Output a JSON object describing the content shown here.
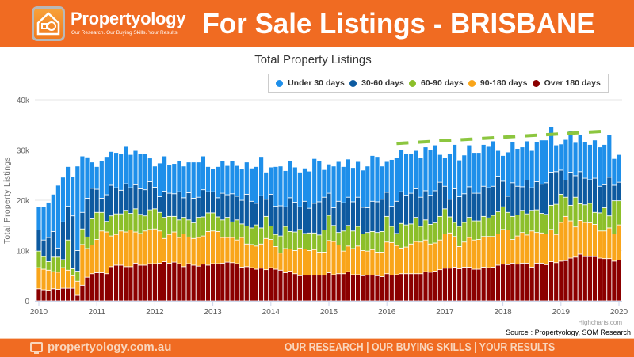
{
  "header": {
    "brand": "Propertyology",
    "tagline": "Our Research. Our Buying Skills. Your Results",
    "title": "For Sale Listings - BRISBANE"
  },
  "footer": {
    "site": "propertyology.com.au",
    "slogan": "OUR RESEARCH | OUR BUYING SKILLS | YOUR RESULTS",
    "brand_color": "#f06b22"
  },
  "source": {
    "label": "Source",
    "text": ": Propertyology, SQM Research"
  },
  "credit": "Highcharts.com",
  "chart_data": {
    "type": "bar",
    "stacked": true,
    "title": "Total Property Listings",
    "ylabel": "Total Property Listings",
    "xlabel": "",
    "ylim": [
      0,
      40000
    ],
    "yticks": [
      "0",
      "10k",
      "20k",
      "30k",
      "40k"
    ],
    "ytick_values": [
      0,
      10000,
      20000,
      30000,
      40000
    ],
    "xticks": [
      "2010",
      "2011",
      "2012",
      "2013",
      "2014",
      "2015",
      "2016",
      "2017",
      "2018",
      "2019",
      "2020"
    ],
    "grid": true,
    "legend_position": "top-right",
    "units": "thousands of listings",
    "categories": [
      "2010-01",
      "2010-02",
      "2010-03",
      "2010-04",
      "2010-05",
      "2010-06",
      "2010-07",
      "2010-08",
      "2010-09",
      "2010-10",
      "2010-11",
      "2010-12",
      "2011-01",
      "2011-02",
      "2011-03",
      "2011-04",
      "2011-05",
      "2011-06",
      "2011-07",
      "2011-08",
      "2011-09",
      "2011-10",
      "2011-11",
      "2011-12",
      "2012-01",
      "2012-02",
      "2012-03",
      "2012-04",
      "2012-05",
      "2012-06",
      "2012-07",
      "2012-08",
      "2012-09",
      "2012-10",
      "2012-11",
      "2012-12",
      "2013-01",
      "2013-02",
      "2013-03",
      "2013-04",
      "2013-05",
      "2013-06",
      "2013-07",
      "2013-08",
      "2013-09",
      "2013-10",
      "2013-11",
      "2013-12",
      "2014-01",
      "2014-02",
      "2014-03",
      "2014-04",
      "2014-05",
      "2014-06",
      "2014-07",
      "2014-08",
      "2014-09",
      "2014-10",
      "2014-11",
      "2014-12",
      "2015-01",
      "2015-02",
      "2015-03",
      "2015-04",
      "2015-05",
      "2015-06",
      "2015-07",
      "2015-08",
      "2015-09",
      "2015-10",
      "2015-11",
      "2015-12",
      "2016-01",
      "2016-02",
      "2016-03",
      "2016-04",
      "2016-05",
      "2016-06",
      "2016-07",
      "2016-08",
      "2016-09",
      "2016-10",
      "2016-11",
      "2016-12",
      "2017-01",
      "2017-02",
      "2017-03",
      "2017-04",
      "2017-05",
      "2017-06",
      "2017-07",
      "2017-08",
      "2017-09",
      "2017-10",
      "2017-11",
      "2017-12",
      "2018-01",
      "2018-02",
      "2018-03",
      "2018-04",
      "2018-05",
      "2018-06",
      "2018-07",
      "2018-08",
      "2018-09",
      "2018-10",
      "2018-11",
      "2018-12",
      "2019-01",
      "2019-02",
      "2019-03",
      "2019-04",
      "2019-05",
      "2019-06",
      "2019-07",
      "2019-08",
      "2019-09",
      "2019-10",
      "2019-11",
      "2019-12",
      "2020-01"
    ],
    "series": [
      {
        "name": "Over 180 days",
        "color": "#8b0000",
        "values": [
          2.4,
          2.2,
          2.1,
          2.4,
          2.3,
          2.5,
          2.5,
          2.5,
          1.1,
          3.1,
          4.7,
          5.4,
          5.6,
          5.6,
          5.4,
          6.8,
          7.1,
          7.1,
          6.8,
          6.8,
          7.5,
          7.1,
          7.1,
          7.4,
          7.4,
          7.5,
          7.8,
          7.5,
          7.7,
          7.4,
          6.8,
          7.4,
          7.1,
          6.9,
          7.3,
          7.1,
          7.4,
          7.4,
          7.5,
          7.7,
          7.6,
          7.4,
          6.7,
          6.8,
          6.6,
          6.3,
          6.5,
          6.2,
          6.6,
          6.3,
          6.1,
          5.6,
          5.9,
          5.4,
          5.0,
          5.1,
          5.1,
          5.1,
          5.1,
          5.1,
          5.6,
          5.2,
          5.4,
          5.4,
          5.8,
          5.2,
          5.2,
          5.0,
          5.1,
          5.1,
          5.0,
          4.8,
          5.4,
          5.1,
          5.2,
          5.4,
          5.4,
          5.4,
          5.4,
          5.4,
          5.8,
          5.7,
          5.9,
          6.2,
          6.5,
          6.5,
          6.7,
          6.4,
          6.7,
          6.7,
          6.3,
          6.3,
          6.7,
          6.6,
          6.7,
          7.1,
          7.3,
          7.2,
          7.5,
          7.3,
          7.5,
          7.5,
          6.7,
          7.5,
          7.5,
          7.2,
          7.8,
          7.6,
          7.9,
          8.0,
          8.5,
          8.7,
          9.3,
          8.8,
          8.8,
          8.8,
          8.5,
          8.4,
          8.4,
          7.9,
          8.1
        ]
      },
      {
        "name": "90-180 days",
        "color": "#f9a51a",
        "values": [
          4.2,
          4.1,
          4.0,
          3.4,
          3.4,
          4.1,
          3.6,
          2.5,
          2.8,
          8.1,
          5.7,
          5.7,
          6.6,
          8.3,
          8.3,
          6.1,
          6.1,
          6.8,
          6.9,
          7.3,
          6.2,
          6.3,
          6.8,
          6.8,
          6.9,
          6.4,
          4.6,
          5.7,
          6.0,
          5.2,
          6.5,
          5.3,
          5.3,
          5.7,
          5.6,
          6.7,
          6.5,
          6.4,
          5.1,
          4.9,
          5.0,
          4.7,
          5.9,
          4.5,
          4.6,
          4.6,
          4.8,
          6.2,
          5.6,
          4.5,
          3.4,
          4.8,
          4.4,
          4.6,
          5.5,
          5.2,
          4.9,
          5.1,
          4.6,
          4.6,
          6.4,
          6.6,
          5.7,
          4.5,
          5.1,
          5.2,
          5.7,
          5.0,
          4.8,
          5.1,
          4.7,
          4.9,
          6.3,
          6.5,
          5.8,
          5.1,
          5.3,
          5.9,
          6.4,
          6.3,
          6.3,
          5.6,
          5.6,
          5.9,
          6.8,
          7.0,
          6.1,
          4.4,
          5.0,
          5.9,
          5.8,
          5.9,
          6.1,
          6.2,
          6.1,
          6.2,
          6.9,
          6.9,
          4.7,
          5.6,
          6.1,
          5.6,
          7.2,
          6.1,
          6.0,
          6.1,
          6.4,
          5.6,
          7.7,
          8.8,
          7.4,
          6.0,
          6.7,
          6.8,
          6.7,
          6.4,
          5.4,
          5.5,
          6.1,
          5.4,
          7.0
        ]
      },
      {
        "name": "60-90 days",
        "color": "#8cbf2a",
        "values": [
          3.3,
          2.5,
          1.7,
          2.9,
          3.0,
          1.6,
          6.0,
          1.4,
          2.0,
          3.1,
          2.3,
          5.2,
          5.4,
          3.7,
          2.1,
          4.0,
          4.1,
          3.4,
          4.3,
          3.3,
          4.6,
          3.8,
          3.0,
          3.9,
          4.0,
          3.7,
          4.2,
          3.6,
          3.1,
          3.5,
          3.3,
          3.4,
          3.1,
          4.0,
          3.8,
          3.7,
          3.6,
          2.9,
          3.5,
          4.0,
          3.1,
          4.0,
          2.7,
          3.6,
          3.3,
          4.2,
          3.2,
          4.4,
          2.7,
          2.4,
          3.4,
          4.4,
          3.5,
          3.7,
          3.7,
          3.1,
          3.5,
          3.3,
          3.4,
          4.4,
          5.0,
          3.2,
          2.5,
          4.0,
          4.1,
          3.5,
          3.9,
          3.3,
          3.7,
          3.6,
          3.9,
          4.1,
          5.1,
          3.2,
          2.4,
          4.9,
          4.4,
          4.0,
          4.8,
          3.1,
          4.0,
          3.9,
          4.0,
          4.7,
          5.0,
          3.2,
          2.8,
          4.0,
          3.9,
          4.0,
          3.8,
          3.7,
          4.0,
          3.7,
          4.2,
          4.4,
          4.5,
          3.5,
          4.6,
          4.2,
          4.4,
          4.2,
          4.1,
          4.5,
          3.9,
          3.9,
          4.8,
          6.0,
          5.6,
          3.8,
          3.1,
          5.9,
          3.3,
          3.5,
          3.9,
          2.4,
          3.6,
          4.6,
          2.4,
          6.6,
          4.8
        ]
      },
      {
        "name": "30-60 days",
        "color": "#0d5aa0",
        "values": [
          4.2,
          3.3,
          4.8,
          5.1,
          1.8,
          7.5,
          6.7,
          10.5,
          4.1,
          3.3,
          7.7,
          6.1,
          4.6,
          2.8,
          5.3,
          6.1,
          5.2,
          4.7,
          5.3,
          5.1,
          4.8,
          5.1,
          5.2,
          5.6,
          4.3,
          3.1,
          5.2,
          4.6,
          4.5,
          5.6,
          3.9,
          5.4,
          4.9,
          4.0,
          5.4,
          4.2,
          4.2,
          3.8,
          5.3,
          4.5,
          5.6,
          4.7,
          4.7,
          6.3,
          5.3,
          4.3,
          6.4,
          3.4,
          6.3,
          5.6,
          6.0,
          3.9,
          6.7,
          5.9,
          4.5,
          6.4,
          4.9,
          5.9,
          6.6,
          6.5,
          4.4,
          3.5,
          6.2,
          5.6,
          5.6,
          5.8,
          5.8,
          5.3,
          4.9,
          6.0,
          6.1,
          6.4,
          4.8,
          4.0,
          6.4,
          6.3,
          5.9,
          6.1,
          5.7,
          5.8,
          5.8,
          5.8,
          6.4,
          6.8,
          4.5,
          3.5,
          6.7,
          5.9,
          5.7,
          6.1,
          5.5,
          5.5,
          6.0,
          6.0,
          5.8,
          7.1,
          5.1,
          3.2,
          6.7,
          5.7,
          4.7,
          6.7,
          4.5,
          5.6,
          5.8,
          6.3,
          6.6,
          6.5,
          4.8,
          3.4,
          6.6,
          4.3,
          6.4,
          5.3,
          4.7,
          6.8,
          5.3,
          4.6,
          7.7,
          3.1,
          3.7
        ]
      },
      {
        "name": "Under 30 days",
        "color": "#1e8fea",
        "values": [
          4.7,
          6.6,
          7.0,
          7.4,
          12.5,
          8.9,
          7.9,
          7.8,
          16.8,
          11.2,
          8.2,
          5.2,
          4.5,
          7.4,
          7.6,
          6.7,
          7.0,
          7.2,
          7.4,
          6.6,
          6.8,
          7.0,
          7.1,
          4.7,
          4.2,
          6.7,
          7.0,
          5.7,
          6.0,
          6.1,
          6.3,
          6.1,
          7.2,
          7.0,
          6.7,
          5.0,
          4.6,
          6.2,
          6.5,
          5.8,
          6.5,
          6.1,
          6.2,
          6.4,
          6.6,
          7.3,
          7.8,
          5.4,
          5.4,
          7.9,
          7.9,
          7.2,
          7.4,
          7.0,
          6.9,
          6.6,
          7.4,
          8.9,
          8.2,
          5.5,
          5.8,
          8.3,
          7.9,
          7.2,
          7.6,
          6.8,
          7.1,
          7.4,
          8.3,
          9.1,
          9.0,
          6.6,
          6.1,
          9.3,
          8.7,
          8.4,
          8.3,
          7.9,
          7.6,
          7.9,
          8.7,
          9.1,
          9.1,
          5.5,
          5.7,
          9.1,
          8.8,
          7.3,
          7.7,
          8.3,
          8.1,
          8.1,
          8.3,
          8.2,
          9.0,
          5.1,
          5.1,
          8.8,
          8.1,
          7.5,
          7.9,
          7.8,
          7.4,
          7.9,
          8.8,
          8.5,
          9.0,
          5.3,
          5.2,
          8.1,
          8.3,
          6.6,
          7.3,
          7.2,
          7.0,
          7.6,
          7.8,
          8.0,
          8.5,
          5.3,
          5.5
        ]
      }
    ],
    "legend_order": [
      "Under 30 days",
      "30-60 days",
      "60-90 days",
      "90-180 days",
      "Over 180 days"
    ],
    "trendline": {
      "color": "#8cc63f",
      "style": "dashed",
      "from": {
        "x": "2016-03",
        "y": 31.3
      },
      "to": {
        "x": "2019-11",
        "y": 33.8
      }
    }
  }
}
